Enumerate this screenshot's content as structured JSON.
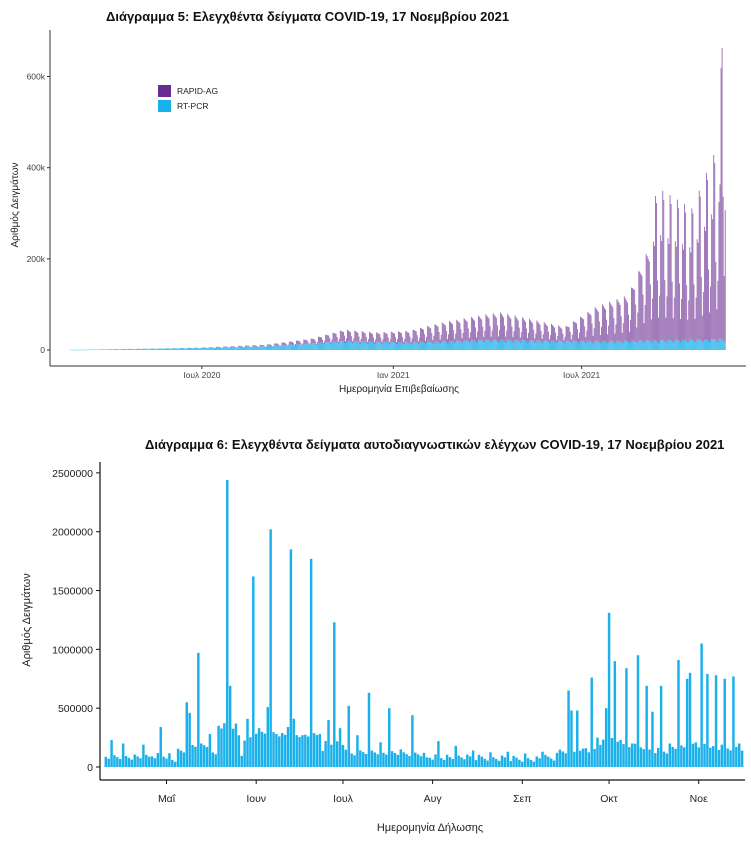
{
  "chart_data": [
    {
      "type": "bar",
      "stacked": true,
      "title": "Διάγραμμα 5: Ελεγχθέντα δείγματα COVID-19, 17 Νοεμβρίου 2021",
      "xlabel": "Ημερομηνία Επιβεβαίωσης",
      "ylabel": "Αριθμός Δειγμάτων",
      "x_range": [
        "2020-02-26",
        "2021-11-16"
      ],
      "ylim": [
        0,
        680000
      ],
      "y_ticks": [
        0,
        200000,
        400000,
        600000
      ],
      "y_tick_labels": [
        "0",
        "200k",
        "400k",
        "600k"
      ],
      "x_tick_labels": [
        {
          "date": "2020-07-01",
          "label": "Ιουλ 2020"
        },
        {
          "date": "2021-01-01",
          "label": "Ιαν 2021"
        },
        {
          "date": "2021-07-01",
          "label": "Ιουλ 2021"
        }
      ],
      "legend": {
        "position": "top-left",
        "entries": [
          "RAPID-AG",
          "RT-PCR"
        ]
      },
      "series": [
        {
          "name": "RAPID-AG",
          "color": "#6a2c91"
        },
        {
          "name": "RT-PCR",
          "color": "#1ab0ea"
        }
      ],
      "daily_profile_rapid_ag": [
        {
          "date": "2020-07-01",
          "value": 0
        },
        {
          "date": "2020-09-01",
          "value": 3000
        },
        {
          "date": "2020-10-15",
          "value": 10000
        },
        {
          "date": "2020-11-15",
          "value": 25000
        },
        {
          "date": "2020-12-15",
          "value": 20000
        },
        {
          "date": "2021-01-15",
          "value": 25000
        },
        {
          "date": "2021-02-15",
          "value": 40000
        },
        {
          "date": "2021-03-15",
          "value": 50000
        },
        {
          "date": "2021-04-15",
          "value": 60000
        },
        {
          "date": "2021-05-15",
          "value": 45000
        },
        {
          "date": "2021-06-15",
          "value": 30000
        },
        {
          "date": "2021-07-15",
          "value": 75000
        },
        {
          "date": "2021-08-15",
          "value": 100000
        },
        {
          "date": "2021-09-05",
          "value": 210000
        },
        {
          "date": "2021-09-15",
          "value": 230000
        },
        {
          "date": "2021-10-15",
          "value": 200000
        },
        {
          "date": "2021-11-10",
          "value": 300000
        },
        {
          "date": "2021-11-16",
          "value": 640000
        }
      ],
      "daily_profile_rt_pcr": [
        {
          "date": "2020-02-26",
          "value": 300
        },
        {
          "date": "2020-06-01",
          "value": 4000
        },
        {
          "date": "2020-09-01",
          "value": 9000
        },
        {
          "date": "2020-11-15",
          "value": 20000
        },
        {
          "date": "2021-01-15",
          "value": 17000
        },
        {
          "date": "2021-04-01",
          "value": 23000
        },
        {
          "date": "2021-07-15",
          "value": 20000
        },
        {
          "date": "2021-09-15",
          "value": 22000
        },
        {
          "date": "2021-11-16",
          "value": 25000
        }
      ]
    },
    {
      "type": "bar",
      "title": "Διάγραμμα 6: Ελεγχθέντα δείγματα αυτοδιαγνωστικών ελέγχων COVID-19, 17 Νοεμβρίου 2021",
      "xlabel": "Ημερομηνία Δήλωσης",
      "ylabel": "Αριθμός Δειγμάτων",
      "ylim": [
        0,
        2550000
      ],
      "y_ticks": [
        0,
        500000,
        1000000,
        1500000,
        2000000,
        2500000
      ],
      "y_tick_labels": [
        "0",
        "500000",
        "1000000",
        "1500000",
        "2000000",
        "2500000"
      ],
      "x_range": [
        "2021-04-08",
        "2021-11-17"
      ],
      "x_tick_labels": [
        {
          "date": "2021-05-01",
          "label": "Μαΐ"
        },
        {
          "date": "2021-06-01",
          "label": "Ιουν"
        },
        {
          "date": "2021-07-01",
          "label": "Ιουλ"
        },
        {
          "date": "2021-08-01",
          "label": "Αυγ"
        },
        {
          "date": "2021-09-01",
          "label": "Σεπ"
        },
        {
          "date": "2021-10-01",
          "label": "Οκτ"
        },
        {
          "date": "2021-11-01",
          "label": "Νοε"
        }
      ],
      "series": [
        {
          "color": "#1ab0ea"
        }
      ],
      "peaks": [
        {
          "date": "2021-04-12",
          "value": 230000
        },
        {
          "date": "2021-04-16",
          "value": 200000
        },
        {
          "date": "2021-04-23",
          "value": 190000
        },
        {
          "date": "2021-04-29",
          "value": 340000
        },
        {
          "date": "2021-05-08",
          "value": 550000
        },
        {
          "date": "2021-05-09",
          "value": 460000
        },
        {
          "date": "2021-05-12",
          "value": 970000
        },
        {
          "date": "2021-05-16",
          "value": 280000
        },
        {
          "date": "2021-05-19",
          "value": 350000
        },
        {
          "date": "2021-05-22",
          "value": 2440000
        },
        {
          "date": "2021-05-23",
          "value": 690000
        },
        {
          "date": "2021-05-26",
          "value": 270000
        },
        {
          "date": "2021-05-29",
          "value": 410000
        },
        {
          "date": "2021-05-31",
          "value": 1620000
        },
        {
          "date": "2021-06-02",
          "value": 330000
        },
        {
          "date": "2021-06-05",
          "value": 510000
        },
        {
          "date": "2021-06-06",
          "value": 2020000
        },
        {
          "date": "2021-06-09",
          "value": 260000
        },
        {
          "date": "2021-06-12",
          "value": 340000
        },
        {
          "date": "2021-06-13",
          "value": 1850000
        },
        {
          "date": "2021-06-14",
          "value": 410000
        },
        {
          "date": "2021-06-17",
          "value": 270000
        },
        {
          "date": "2021-06-20",
          "value": 1770000
        },
        {
          "date": "2021-06-23",
          "value": 280000
        },
        {
          "date": "2021-06-26",
          "value": 400000
        },
        {
          "date": "2021-06-28",
          "value": 1230000
        },
        {
          "date": "2021-06-30",
          "value": 330000
        },
        {
          "date": "2021-07-03",
          "value": 520000
        },
        {
          "date": "2021-07-06",
          "value": 270000
        },
        {
          "date": "2021-07-10",
          "value": 630000
        },
        {
          "date": "2021-07-14",
          "value": 210000
        },
        {
          "date": "2021-07-17",
          "value": 500000
        },
        {
          "date": "2021-07-21",
          "value": 150000
        },
        {
          "date": "2021-07-25",
          "value": 440000
        },
        {
          "date": "2021-07-29",
          "value": 120000
        },
        {
          "date": "2021-08-03",
          "value": 220000
        },
        {
          "date": "2021-08-09",
          "value": 180000
        },
        {
          "date": "2021-08-15",
          "value": 140000
        },
        {
          "date": "2021-08-21",
          "value": 125000
        },
        {
          "date": "2021-08-27",
          "value": 130000
        },
        {
          "date": "2021-09-02",
          "value": 115000
        },
        {
          "date": "2021-09-08",
          "value": 130000
        },
        {
          "date": "2021-09-13",
          "value": 120000
        },
        {
          "date": "2021-09-17",
          "value": 650000
        },
        {
          "date": "2021-09-18",
          "value": 480000
        },
        {
          "date": "2021-09-20",
          "value": 480000
        },
        {
          "date": "2021-09-23",
          "value": 160000
        },
        {
          "date": "2021-09-25",
          "value": 760000
        },
        {
          "date": "2021-09-27",
          "value": 250000
        },
        {
          "date": "2021-09-30",
          "value": 500000
        },
        {
          "date": "2021-10-01",
          "value": 1310000
        },
        {
          "date": "2021-10-03",
          "value": 900000
        },
        {
          "date": "2021-10-05",
          "value": 230000
        },
        {
          "date": "2021-10-07",
          "value": 840000
        },
        {
          "date": "2021-10-09",
          "value": 200000
        },
        {
          "date": "2021-10-11",
          "value": 950000
        },
        {
          "date": "2021-10-14",
          "value": 690000
        },
        {
          "date": "2021-10-16",
          "value": 470000
        },
        {
          "date": "2021-10-19",
          "value": 690000
        },
        {
          "date": "2021-10-22",
          "value": 200000
        },
        {
          "date": "2021-10-25",
          "value": 910000
        },
        {
          "date": "2021-10-28",
          "value": 750000
        },
        {
          "date": "2021-10-29",
          "value": 800000
        },
        {
          "date": "2021-10-31",
          "value": 210000
        },
        {
          "date": "2021-11-02",
          "value": 1050000
        },
        {
          "date": "2021-11-04",
          "value": 790000
        },
        {
          "date": "2021-11-07",
          "value": 780000
        },
        {
          "date": "2021-11-09",
          "value": 190000
        },
        {
          "date": "2021-11-10",
          "value": 750000
        },
        {
          "date": "2021-11-13",
          "value": 770000
        },
        {
          "date": "2021-11-15",
          "value": 200000
        }
      ]
    }
  ]
}
